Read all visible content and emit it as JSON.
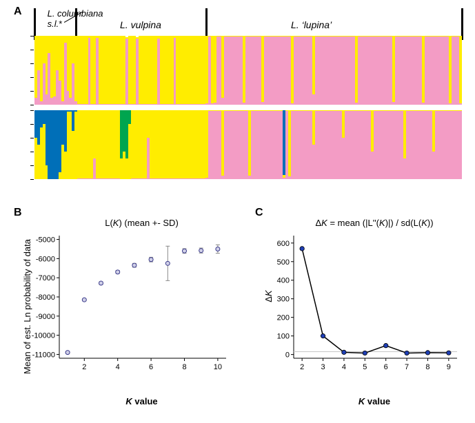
{
  "panel_labels": {
    "A": "A",
    "B": "B",
    "C": "C"
  },
  "panel_label_fontsize": 16,
  "colors": {
    "pink": "#f39cc5",
    "yellow": "#ffed00",
    "blue": "#006fb8",
    "green": "#00a54f",
    "black": "#000000",
    "white": "#ffffff",
    "gridline": "#c6c6c6",
    "marker_fill": "#d0d0e8",
    "marker_stroke": "#3a3a8a",
    "line_stroke_c": "#000000",
    "point_fill_c": "#1f3fb5"
  },
  "panelA": {
    "group_labels": [
      {
        "text_html": "<span class='ital'>L. columbiana</span> s.l.<span class='nonitalic'>*</span>",
        "left_pct": 3,
        "width_pct": 15,
        "fontsize": 13,
        "leader": true
      },
      {
        "text_html": "<span class='ital'>L. vulpina</span>",
        "left_pct": 20,
        "width_pct": 20,
        "fontsize": 14
      },
      {
        "text_html": "<span class='ital'>L.</span> ‘<span class='ital'>lupina</span>’",
        "left_pct": 60,
        "width_pct": 25,
        "fontsize": 14
      }
    ],
    "separators_pct": [
      0,
      9.8,
      40.2,
      100
    ],
    "n_bars": 160,
    "boundaries": {
      "col_end": 16,
      "vul_end": 64
    },
    "top": {
      "comment": "K=2-like: pink vs yellow, with admixture in columbiana",
      "clusters": [
        "pink",
        "yellow"
      ],
      "special_bars": {
        "0": [
          0.1,
          0.9
        ],
        "1": [
          0.5,
          0.5
        ],
        "2": [
          0.05,
          0.95
        ],
        "3": [
          0.6,
          0.4
        ],
        "4": [
          0.15,
          0.85
        ],
        "5": [
          0.75,
          0.25
        ],
        "6": [
          0.1,
          0.9
        ],
        "7": [
          0.12,
          0.88
        ],
        "8": [
          0.5,
          0.5
        ],
        "9": [
          0.35,
          0.65
        ],
        "10": [
          0.05,
          0.95
        ],
        "11": [
          0.9,
          0.1
        ],
        "12": [
          0.2,
          0.8
        ],
        "13": [
          0.1,
          0.9
        ],
        "14": [
          0.6,
          0.4
        ],
        "15": [
          0.05,
          0.95
        ],
        "20": [
          0.97,
          0.03
        ],
        "23": [
          0.97,
          0.03
        ],
        "34": [
          0.96,
          0.02
        ],
        "38": [
          0.96,
          0.02
        ],
        "46": [
          0.96,
          0.04
        ],
        "52": [
          0.97,
          0.03
        ],
        "64": [
          0.02,
          0.98
        ],
        "66": [
          0.02,
          0.98
        ],
        "67": [
          0.03,
          0.97
        ],
        "70": [
          0.1,
          0.9
        ],
        "78": [
          0.03,
          0.97
        ],
        "85": [
          0.04,
          0.96
        ],
        "96": [
          0.02,
          0.98
        ],
        "104": [
          0.15,
          0.85
        ],
        "120": [
          0.03,
          0.97
        ],
        "134": [
          0.04,
          0.96
        ],
        "145": [
          0.03,
          0.97
        ],
        "155": [
          0.02,
          0.98
        ],
        "159": [
          0.02,
          0.98
        ]
      }
    },
    "bottom": {
      "comment": "K=4-like: pink, yellow, blue, green",
      "clusters": [
        "pink",
        "yellow",
        "blue",
        "green"
      ],
      "special_bars": {
        "0": [
          0.0,
          0.6,
          0.4,
          0.0
        ],
        "1": [
          0.0,
          0.5,
          0.5,
          0.0
        ],
        "2": [
          0.0,
          0.75,
          0.25,
          0.0
        ],
        "3": [
          0.0,
          0.8,
          0.2,
          0.0
        ],
        "4": [
          0.0,
          0.2,
          0.8,
          0.0
        ],
        "5": [
          0.0,
          0.0,
          1.0,
          0.0
        ],
        "6": [
          0.0,
          0.0,
          1.0,
          0.0
        ],
        "7": [
          0.0,
          0.0,
          1.0,
          0.0
        ],
        "8": [
          0.0,
          0.0,
          1.0,
          0.0
        ],
        "9": [
          0.0,
          0.1,
          0.9,
          0.0
        ],
        "10": [
          0.0,
          0.5,
          0.5,
          0.0
        ],
        "11": [
          0.0,
          0.4,
          0.6,
          0.0
        ],
        "12": [
          0.0,
          0.98,
          0.02,
          0.0
        ],
        "13": [
          0.0,
          0.98,
          0.02,
          0.0
        ],
        "14": [
          0.0,
          0.7,
          0.3,
          0.0
        ],
        "15": [
          0.0,
          0.98,
          0.02,
          0.0
        ],
        "22": [
          0.3,
          0.7,
          0.0,
          0.0
        ],
        "32": [
          0.0,
          0.3,
          0.0,
          0.7
        ],
        "33": [
          0.0,
          0.4,
          0.0,
          0.6
        ],
        "34": [
          0.0,
          0.3,
          0.0,
          0.7
        ],
        "35": [
          0.0,
          0.8,
          0.0,
          0.2
        ],
        "42": [
          0.6,
          0.4,
          0.0,
          0.0
        ],
        "64": [
          0.02,
          0.98,
          0.0,
          0.0
        ],
        "70": [
          0.05,
          0.95,
          0.0,
          0.0
        ],
        "80": [
          0.05,
          0.95,
          0.0,
          0.0
        ],
        "95": [
          0.04,
          0.96,
          0.0,
          0.0
        ],
        "93": [
          0.02,
          0.04,
          0.94,
          0.0
        ],
        "104": [
          0.5,
          0.5,
          0.0,
          0.0
        ],
        "115": [
          0.6,
          0.4,
          0.0,
          0.0
        ],
        "126": [
          0.4,
          0.6,
          0.0,
          0.0
        ],
        "138": [
          0.3,
          0.7,
          0.0,
          0.0
        ],
        "149": [
          0.4,
          0.6,
          0.0,
          0.0
        ]
      }
    }
  },
  "panelB": {
    "title": "L(K) (mean +- SD)",
    "title_fontsize": 13,
    "type": "scatter-errorbar",
    "x": [
      1,
      2,
      3,
      4,
      5,
      6,
      7,
      8,
      9,
      10
    ],
    "y": [
      -10900,
      -8150,
      -7280,
      -6700,
      -6350,
      -6050,
      -6250,
      -5600,
      -5580,
      -5500
    ],
    "sd": [
      50,
      60,
      70,
      80,
      100,
      120,
      900,
      120,
      130,
      220
    ],
    "xlim": [
      0.5,
      10.5
    ],
    "ylim": [
      -11200,
      -4800
    ],
    "xticks": [
      2,
      4,
      6,
      8,
      10
    ],
    "yticks": [
      -11000,
      -10000,
      -9000,
      -8000,
      -7000,
      -6000,
      -5000
    ],
    "xlabel": "K value",
    "ylabel": "Mean of est. Ln probability of data",
    "label_fontsize": 13,
    "tick_fontsize": 11,
    "marker_radius": 3,
    "stroke_width": 1
  },
  "panelC": {
    "title": "ΔK = mean (|L''(K)|) / sd(L(K))",
    "title_fontsize": 13,
    "type": "line",
    "x": [
      2,
      3,
      4,
      5,
      6,
      7,
      8,
      9
    ],
    "y": [
      570,
      100,
      12,
      8,
      48,
      8,
      10,
      9
    ],
    "xlim": [
      1.6,
      9.4
    ],
    "ylim": [
      -20,
      640
    ],
    "xticks": [
      2,
      3,
      4,
      5,
      6,
      7,
      8,
      9
    ],
    "yticks": [
      0,
      100,
      200,
      300,
      400,
      500,
      600
    ],
    "xlabel": "K value",
    "ylabel": "ΔK",
    "label_fontsize": 13,
    "tick_fontsize": 11,
    "hline_y": 15,
    "marker_radius": 3.2,
    "line_width": 1.5
  }
}
